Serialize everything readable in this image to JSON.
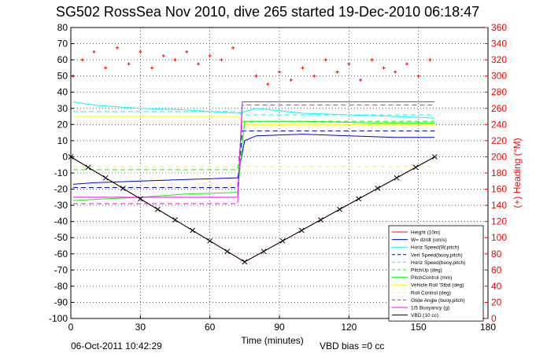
{
  "footer": {
    "timestamp": "06-Oct-2011 10:42:29",
    "vbd_bias": "VBD bias =0 cc"
  },
  "chart_data": {
    "type": "line",
    "title": "SG502 RossSea Nov 2010, dive 265 started 19-Dec-2010 06:18:47",
    "xlabel": "Time (minutes)",
    "ylabel_right": "(+) Heading (°M)",
    "xlim": [
      0,
      180
    ],
    "ylim": [
      -100,
      80
    ],
    "ylim_right": [
      0,
      360
    ],
    "x_ticks": [
      0,
      30,
      60,
      90,
      120,
      150,
      180
    ],
    "y_ticks": [
      -100,
      -90,
      -80,
      -70,
      -60,
      -50,
      -40,
      -30,
      -20,
      -10,
      0,
      10,
      20,
      30,
      40,
      50,
      60,
      70,
      80
    ],
    "y_right_ticks": [
      0,
      20,
      40,
      60,
      80,
      100,
      120,
      140,
      160,
      180,
      200,
      220,
      240,
      260,
      280,
      300,
      320,
      340,
      360
    ],
    "grid": true,
    "legend_position": "bottom-right",
    "colors": {
      "height": "#ff0000",
      "w": "#0000ff",
      "horiz_speed": "#00ffff",
      "vert_speed_buoy": "#0000ff",
      "pitch": "#00ff00",
      "vbd": "#000080",
      "roll": "#ffff00",
      "buoyancy": "#ff00ff",
      "heading": "#ff0000",
      "right_axis": "#ff0000"
    },
    "series": [
      {
        "name": "Height (10m)",
        "style": "solid",
        "color": "#ff0000",
        "x": [
          0,
          75,
          157
        ],
        "y": [
          0,
          -65,
          0
        ]
      },
      {
        "name": "W= dz/dt (cm/s)",
        "style": "solid",
        "color": "#0000ff",
        "x": [
          1,
          10,
          30,
          50,
          72,
          75,
          80,
          100,
          120,
          140,
          157
        ],
        "y": [
          -17,
          -16,
          -15,
          -14,
          -13,
          10,
          13,
          14,
          13,
          12,
          12
        ]
      },
      {
        "name": "Horiz Speed(W,pitch)",
        "style": "solid",
        "color": "#00ffff",
        "x": [
          1,
          10,
          30,
          50,
          72,
          75,
          80,
          100,
          120,
          140,
          157
        ],
        "y": [
          34,
          32,
          30,
          29,
          27,
          28,
          30,
          27,
          26,
          25,
          24
        ]
      },
      {
        "name": "Vert Speed(buoy,pitch)",
        "style": "dashed",
        "color": "#0000ff",
        "x": [
          1,
          72,
          74,
          157
        ],
        "y": [
          -19,
          -19,
          16,
          16
        ]
      },
      {
        "name": "Horiz Speed(buoy,pitch)",
        "style": "dashed",
        "color": "#00ffff",
        "x": [
          1,
          72,
          74,
          157
        ],
        "y": [
          28,
          28,
          26,
          26
        ]
      },
      {
        "name": "PitchUp (deg)",
        "style": "dashed",
        "color": "#00ff00",
        "x": [
          1,
          72,
          74,
          157
        ],
        "y": [
          -8,
          -8,
          22,
          22
        ]
      },
      {
        "name": "PitchControl (mm)",
        "style": "solid",
        "color": "#00ff00",
        "x": [
          1,
          30,
          50,
          72,
          75,
          100,
          130,
          157
        ],
        "y": [
          -27,
          -25,
          -23,
          -22,
          22,
          22,
          21,
          21
        ]
      },
      {
        "name": "Vehicle Roll 'Stbd (deg)",
        "style": "solid",
        "color": "#ffff00",
        "x": [
          1,
          72,
          75,
          157
        ],
        "y": [
          25,
          25,
          20,
          20
        ]
      },
      {
        "name": "Roll Control (deg)",
        "style": "dashed",
        "color": "#ffff00",
        "x": [
          1,
          72,
          75,
          157
        ],
        "y": [
          -6,
          -6,
          -6,
          -6
        ]
      },
      {
        "name": "Glide Angle (buoy,pitch)",
        "style": "dashed",
        "color": "#ff00ff",
        "x": [
          1,
          72,
          74,
          157
        ],
        "y": [
          -29,
          -29,
          32,
          32
        ]
      },
      {
        "name": "1/5 Buoyancy (g)",
        "style": "solid",
        "color": "#ff00ff",
        "x": [
          1,
          72,
          74,
          157
        ],
        "y": [
          -25,
          -25,
          34,
          34
        ]
      },
      {
        "name": "VBD (10 cc)",
        "style": "solid",
        "color": "#000000",
        "x": [
          0,
          75,
          157
        ],
        "y": [
          0,
          -65,
          0
        ]
      }
    ],
    "heading_series": {
      "name": "Heading",
      "x": [
        1,
        5,
        10,
        15,
        20,
        25,
        30,
        35,
        40,
        45,
        50,
        55,
        60,
        65,
        70,
        80,
        85,
        90,
        95,
        100,
        105,
        110,
        115,
        120,
        125,
        130,
        135,
        140,
        145,
        150,
        155
      ],
      "heading_deg": [
        300,
        320,
        330,
        310,
        335,
        315,
        330,
        310,
        325,
        320,
        330,
        315,
        325,
        320,
        335,
        300,
        290,
        305,
        295,
        310,
        300,
        320,
        305,
        315,
        295,
        320,
        310,
        305,
        315,
        300,
        320
      ]
    }
  }
}
